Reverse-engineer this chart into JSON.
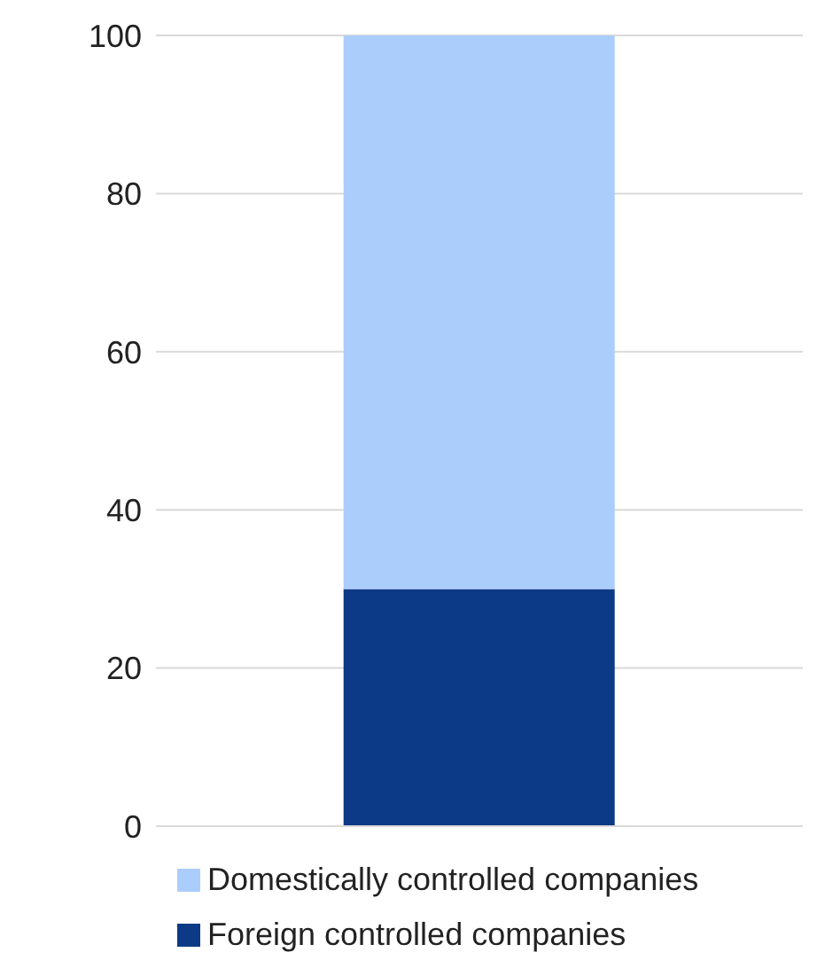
{
  "chart_data": {
    "type": "bar",
    "stacked": true,
    "categories": [
      null
    ],
    "series": [
      {
        "name": "Foreign controlled companies",
        "color": "#0d3a87",
        "values": [
          30
        ]
      },
      {
        "name": "Domestically controlled companies",
        "color": "#abcdfb",
        "values": [
          70
        ]
      }
    ],
    "ylim": [
      0,
      100
    ],
    "yticks": [
      0,
      20,
      40,
      60,
      80,
      100
    ],
    "grid": "y",
    "legend": "bottom"
  }
}
